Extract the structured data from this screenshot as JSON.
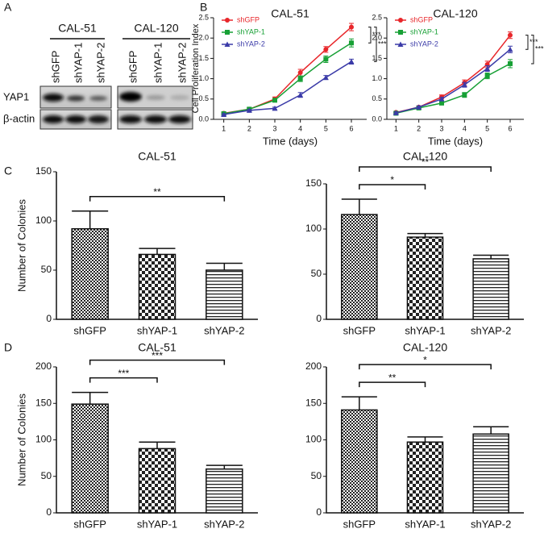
{
  "panel_labels": [
    "A",
    "B",
    "C",
    "D"
  ],
  "blot": {
    "groups": [
      "CAL-51",
      "CAL-120"
    ],
    "lanes": [
      "shGFP",
      "shYAP-1",
      "shYAP-2"
    ],
    "rows": [
      "YAP1",
      "β-actin"
    ]
  },
  "chart_data": [
    {
      "type": "line",
      "title": "CAL-51",
      "x_label": "Time (days)",
      "y_label": "Cell Proliferation Index",
      "x": [
        1,
        2,
        3,
        4,
        5,
        6
      ],
      "xlim": [
        0.6,
        6.6
      ],
      "xticks": [
        1,
        2,
        3,
        4,
        5,
        6
      ],
      "ylim": [
        0,
        2.5
      ],
      "yticks": [
        {
          "value": 0,
          "label": "0.0"
        },
        0.5,
        {
          "value": 1,
          "label": "1.0"
        },
        1.5,
        {
          "value": 2,
          "label": "2.0"
        },
        2.5
      ],
      "legend": "upper left",
      "series": [
        {
          "name": "shGFP",
          "color": "#e8262a",
          "marker": "circle",
          "values": [
            0.15,
            0.25,
            0.5,
            1.15,
            1.72,
            2.27
          ],
          "errors": [
            0.02,
            0.03,
            0.05,
            0.08,
            0.07,
            0.09
          ]
        },
        {
          "name": "shYAP-1",
          "color": "#17a035",
          "marker": "square",
          "values": [
            0.14,
            0.25,
            0.47,
            1.0,
            1.48,
            1.88
          ],
          "errors": [
            0.02,
            0.03,
            0.04,
            0.07,
            0.08,
            0.1
          ]
        },
        {
          "name": "shYAP-2",
          "color": "#3b3ba8",
          "marker": "triangle",
          "values": [
            0.12,
            0.22,
            0.27,
            0.6,
            1.03,
            1.42
          ],
          "errors": [
            0.02,
            0.02,
            0.03,
            0.06,
            0.05,
            0.06
          ]
        }
      ],
      "annotations": [
        {
          "text": "***",
          "from": 0,
          "to": 1
        },
        {
          "text": "***",
          "from": 0,
          "to": 2
        }
      ]
    },
    {
      "type": "line",
      "title": "CAL-120",
      "x_label": "Time (days)",
      "x": [
        1,
        2,
        3,
        4,
        5,
        6
      ],
      "xlim": [
        0.6,
        6.6
      ],
      "xticks": [
        1,
        2,
        3,
        4,
        5,
        6
      ],
      "ylim": [
        0,
        2.5
      ],
      "yticks": [
        {
          "value": 0,
          "label": "0.0"
        },
        0.5,
        {
          "value": 1,
          "label": "1.0"
        },
        1.5,
        {
          "value": 2,
          "label": "2.0"
        },
        2.5
      ],
      "legend": "upper left",
      "series": [
        {
          "name": "shGFP",
          "color": "#e8262a",
          "marker": "circle",
          "values": [
            0.17,
            0.3,
            0.55,
            0.9,
            1.35,
            2.07
          ],
          "errors": [
            0.02,
            0.03,
            0.05,
            0.07,
            0.08,
            0.08
          ]
        },
        {
          "name": "shYAP-1",
          "color": "#17a035",
          "marker": "square",
          "values": [
            0.15,
            0.28,
            0.4,
            0.6,
            1.07,
            1.37
          ],
          "errors": [
            0.02,
            0.03,
            0.04,
            0.06,
            0.07,
            0.1
          ]
        },
        {
          "name": "shYAP-2",
          "color": "#3b3ba8",
          "marker": "triangle",
          "values": [
            0.16,
            0.3,
            0.5,
            0.85,
            1.25,
            1.72
          ],
          "errors": [
            0.02,
            0.03,
            0.04,
            0.06,
            0.07,
            0.08
          ]
        }
      ],
      "annotations": [
        {
          "text": "***",
          "from": 0,
          "to": 2
        },
        {
          "text": "***",
          "from": 0,
          "to": 1
        }
      ]
    },
    {
      "type": "bar",
      "title": "CAL-51",
      "y_label": "Number of Colonies",
      "categories": [
        "shGFP",
        "shYAP-1",
        "shYAP-2"
      ],
      "values": [
        92,
        66,
        50
      ],
      "errors": [
        18,
        6,
        7
      ],
      "patterns": [
        "dots",
        "checker",
        "hlines"
      ],
      "ylim": [
        0,
        150
      ],
      "yticks": [
        0,
        50,
        100,
        150
      ],
      "annotations": [
        {
          "text": "**",
          "from": 0,
          "to": 2
        }
      ]
    },
    {
      "type": "bar",
      "title": "CAL-120",
      "categories": [
        "shGFP",
        "shYAP-1",
        "shYAP-2"
      ],
      "values": [
        116,
        91,
        67
      ],
      "errors": [
        17,
        4,
        4
      ],
      "patterns": [
        "dots",
        "checker",
        "hlines"
      ],
      "ylim": [
        0,
        150
      ],
      "yticks": [
        0,
        50,
        100,
        150
      ],
      "annotations": [
        {
          "text": "*",
          "from": 0,
          "to": 1
        },
        {
          "text": "**",
          "from": 0,
          "to": 2
        }
      ]
    },
    {
      "type": "bar",
      "title": "CAL-51",
      "y_label": "Number of Colonies",
      "categories": [
        "shGFP",
        "shYAP-1",
        "shYAP-2"
      ],
      "values": [
        149,
        88,
        60
      ],
      "errors": [
        16,
        9,
        5
      ],
      "patterns": [
        "dots",
        "checker",
        "hlines"
      ],
      "ylim": [
        0,
        200
      ],
      "yticks": [
        0,
        50,
        100,
        150,
        200
      ],
      "annotations": [
        {
          "text": "***",
          "from": 0,
          "to": 1
        },
        {
          "text": "***",
          "from": 0,
          "to": 2
        }
      ]
    },
    {
      "type": "bar",
      "title": "CAL-120",
      "categories": [
        "shGFP",
        "shYAP-1",
        "shYAP-2"
      ],
      "values": [
        141,
        97,
        108
      ],
      "errors": [
        18,
        7,
        10
      ],
      "patterns": [
        "dots",
        "checker",
        "hlines"
      ],
      "ylim": [
        0,
        200
      ],
      "yticks": [
        0,
        50,
        100,
        150,
        200
      ],
      "annotations": [
        {
          "text": "**",
          "from": 0,
          "to": 1
        },
        {
          "text": "*",
          "from": 0,
          "to": 2
        }
      ]
    }
  ]
}
